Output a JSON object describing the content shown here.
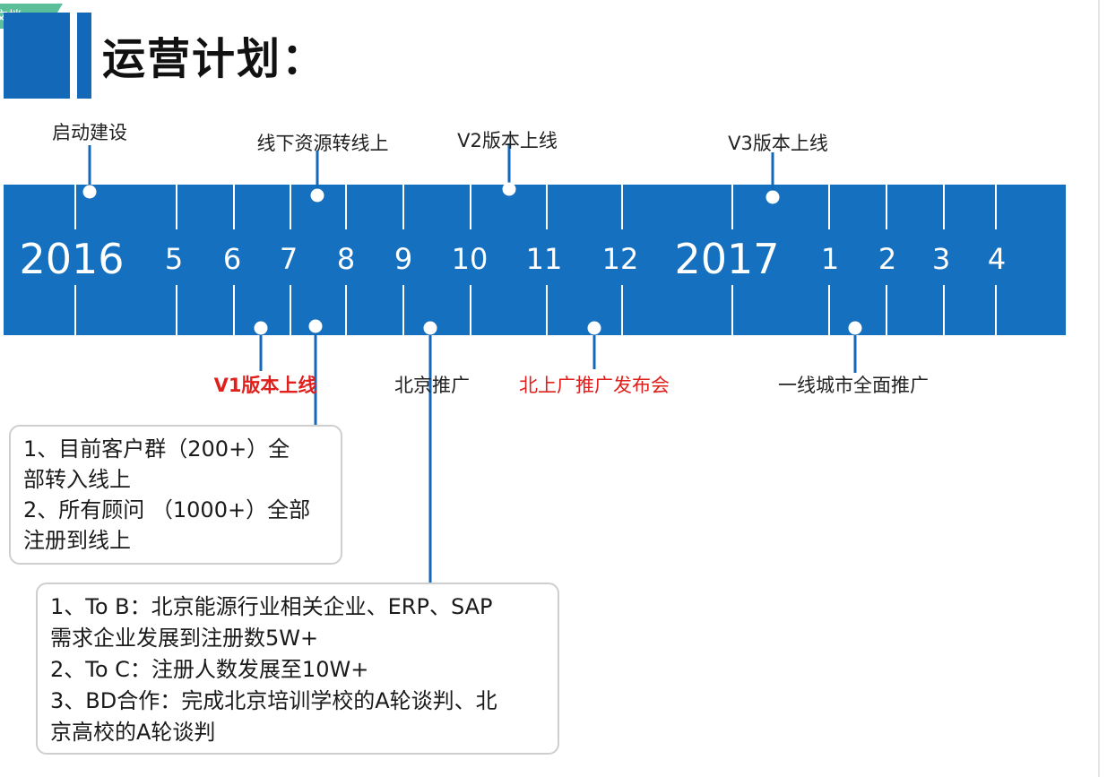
{
  "tag": {
    "label": "文档"
  },
  "title": "运营计划：",
  "timeline": {
    "years": [
      "2016",
      "2017"
    ],
    "months_2016": [
      "5",
      "6",
      "7",
      "8",
      "9",
      "10",
      "11",
      "12"
    ],
    "months_2017": [
      "1",
      "2",
      "3",
      "4"
    ]
  },
  "milestones_top": [
    "启动建设",
    "线下资源转线上",
    "V2版本上线",
    "V3版本上线"
  ],
  "milestones_bottom": [
    "V1版本上线",
    "北京推广",
    "北上广推广发布会",
    "一线城市全面推广"
  ],
  "box1": [
    "1、目前客户群（200+）全",
    "部转入线上",
    "2、所有顾问 （1000+）全部",
    "注册到线上"
  ],
  "box2": [
    "1、To B：北京能源行业相关企业、ERP、SAP",
    "需求企业发展到注册数5W+",
    "2、To C：注册人数发展至10W+",
    "3、BD合作：完成北京培训学校的A轮谈判、北",
    "京高校的A轮谈判"
  ],
  "colors": {
    "band": "#1570c0",
    "accent": "#1468b8",
    "red": "#e0201c",
    "tag": "#5bbf9a"
  }
}
